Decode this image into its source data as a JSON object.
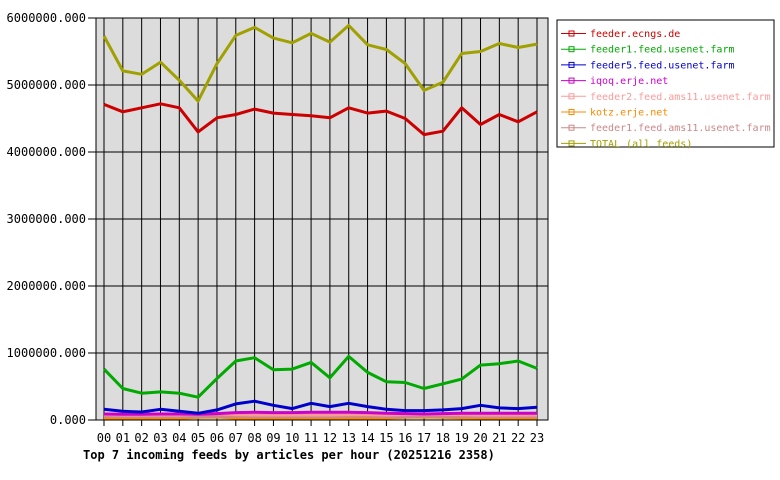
{
  "chart_data": {
    "type": "line",
    "title": "Top 7 incoming feeds by articles per hour (20251216 2358)",
    "xlabel": "",
    "ylabel": "",
    "x_labels": [
      "00",
      "01",
      "02",
      "03",
      "04",
      "05",
      "06",
      "07",
      "08",
      "09",
      "10",
      "11",
      "12",
      "13",
      "14",
      "15",
      "16",
      "17",
      "18",
      "19",
      "20",
      "21",
      "22",
      "23"
    ],
    "ylim": [
      0,
      6000000
    ],
    "y_ticks": [
      0,
      1000000,
      2000000,
      3000000,
      4000000,
      5000000,
      6000000
    ],
    "y_tick_labels": [
      "0.000",
      "1000000.000",
      "2000000.000",
      "3000000.000",
      "4000000.000",
      "5000000.000",
      "6000000.000"
    ],
    "grid": true,
    "legend_position": "outside-top-right",
    "colors": {
      "plot_background": "#dcdcdc",
      "page_background": "#ffffff",
      "grid_line": "#000000",
      "axis_line": "#000000",
      "title_text": "#000000"
    },
    "series": [
      {
        "name": "feeder.ecngs.de",
        "color": "#cc0000",
        "values": [
          4710000,
          4600000,
          4660000,
          4720000,
          4660000,
          4300000,
          4510000,
          4560000,
          4640000,
          4580000,
          4560000,
          4540000,
          4510000,
          4660000,
          4580000,
          4610000,
          4500000,
          4260000,
          4310000,
          4660000,
          4410000,
          4560000,
          4450000,
          4600000
        ]
      },
      {
        "name": "feeder1.feed.usenet.farm",
        "color": "#00aa00",
        "values": [
          760000,
          470000,
          400000,
          420000,
          400000,
          340000,
          620000,
          880000,
          930000,
          750000,
          760000,
          860000,
          630000,
          950000,
          710000,
          570000,
          560000,
          470000,
          540000,
          610000,
          820000,
          840000,
          880000,
          770000
        ]
      },
      {
        "name": "feeder5.feed.usenet.farm",
        "color": "#0000cc",
        "values": [
          160000,
          130000,
          120000,
          160000,
          130000,
          100000,
          150000,
          240000,
          280000,
          220000,
          170000,
          250000,
          200000,
          250000,
          200000,
          160000,
          140000,
          140000,
          150000,
          170000,
          220000,
          180000,
          170000,
          190000
        ]
      },
      {
        "name": "iqoq.erje.net",
        "color": "#cc00cc",
        "values": [
          90000,
          85000,
          85000,
          90000,
          90000,
          85000,
          95000,
          110000,
          115000,
          110000,
          110000,
          115000,
          115000,
          115000,
          110000,
          100000,
          95000,
          90000,
          95000,
          100000,
          100000,
          100000,
          100000,
          100000
        ]
      },
      {
        "name": "feeder2.feed.ams11.usenet.farm",
        "color": "#ff9999",
        "values": [
          80000,
          75000,
          75000,
          75000,
          75000,
          85000,
          95000,
          80000,
          75000,
          75000,
          75000,
          75000,
          75000,
          80000,
          80000,
          75000,
          80000,
          85000,
          85000,
          80000,
          75000,
          75000,
          75000,
          75000
        ]
      },
      {
        "name": "kotz.erje.net",
        "color": "#ff8800",
        "values": [
          30000,
          25000,
          25000,
          25000,
          25000,
          40000,
          45000,
          30000,
          25000,
          25000,
          25000,
          25000,
          25000,
          30000,
          30000,
          30000,
          40000,
          45000,
          40000,
          35000,
          30000,
          25000,
          25000,
          30000
        ]
      },
      {
        "name": "feeder1.feed.ams11.usenet.farm",
        "color": "#cc8888",
        "values": [
          55000,
          50000,
          50000,
          50000,
          50000,
          50000,
          55000,
          55000,
          50000,
          50000,
          50000,
          50000,
          50000,
          55000,
          55000,
          50000,
          50000,
          55000,
          55000,
          55000,
          50000,
          50000,
          50000,
          50000
        ]
      },
      {
        "name": "TOTAL (all feeds)",
        "color": "#a0a000",
        "values": [
          5730000,
          5210000,
          5160000,
          5340000,
          5070000,
          4760000,
          5320000,
          5740000,
          5860000,
          5700000,
          5630000,
          5770000,
          5640000,
          5890000,
          5600000,
          5530000,
          5320000,
          4920000,
          5040000,
          5470000,
          5500000,
          5620000,
          5560000,
          5610000
        ]
      }
    ]
  }
}
